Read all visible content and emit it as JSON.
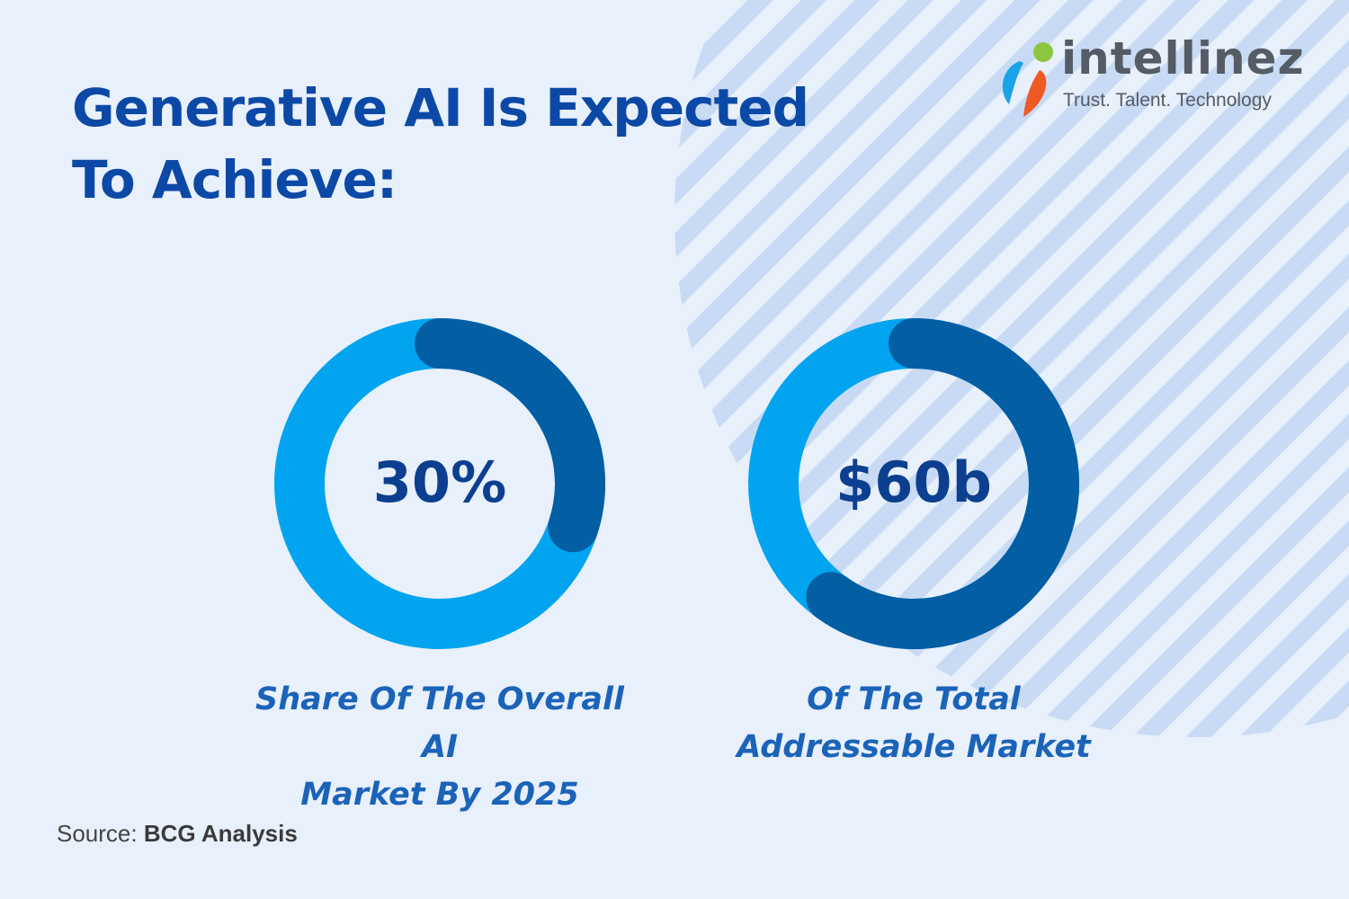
{
  "title": "Generative AI Is Expected To Achieve:",
  "logo": {
    "wordmark": "intellinez",
    "tagline": "Trust. Talent. Technology"
  },
  "colors": {
    "background": "#e8f0fc",
    "stripes": "#c9daf4",
    "ring_light": "#02a4ef",
    "ring_dark": "#035ea3",
    "title": "#0c49a6",
    "value_text": "#0c3f8f",
    "caption": "#1b63b8"
  },
  "chart_data": [
    {
      "type": "donut",
      "value_label": "30%",
      "filled_fraction": 0.3,
      "caption_lines": [
        "Share Of The Overall AI",
        "Market By 2025"
      ]
    },
    {
      "type": "donut",
      "value_label": "$60b",
      "filled_fraction": 0.6,
      "caption_lines": [
        "Of The Total",
        "Addressable Market"
      ]
    }
  ],
  "source": {
    "label": "Source:",
    "value": "BCG Analysis"
  }
}
